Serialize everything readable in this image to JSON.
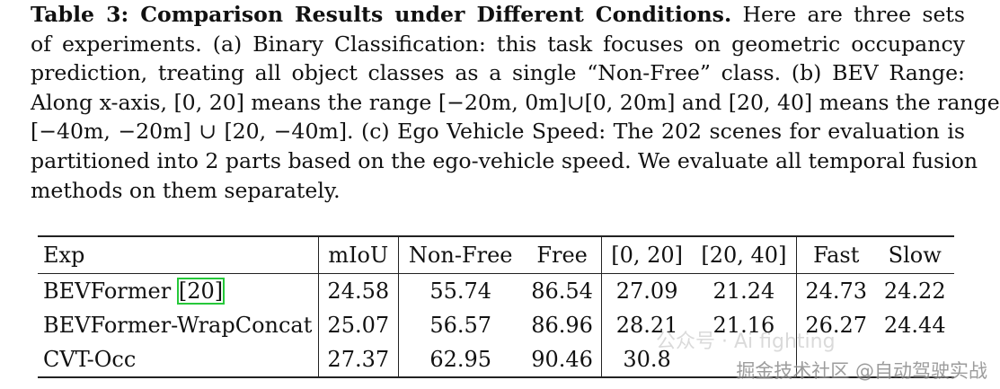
{
  "caption": {
    "lead": "Table 3: Comparison Results under Different Conditions.",
    "lines": [
      "Here are three sets",
      "of experiments. (a) Binary Classification: this task focuses on geometric occupancy",
      "prediction, treating all object classes as a single “Non-Free” class. (b) BEV Range:",
      "Along x-axis, [0, 20] means the range [−20m, 0m]∪[0, 20m] and [20, 40] means the range",
      "[−40m, −20m] ∪ [20, −40m]. (c) Ego Vehicle Speed: The 202 scenes for evaluation is",
      "partitioned into 2 parts based on the ego-vehicle speed. We evaluate all temporal fusion",
      "methods on them separately."
    ]
  },
  "table": {
    "headers": [
      "Exp",
      "mIoU",
      "Non-Free",
      "Free",
      "[0, 20]",
      "[20, 40]",
      "Fast",
      "Slow"
    ],
    "rows": [
      {
        "exp": "BEVFormer",
        "ref": "20",
        "values": [
          "24.58",
          "55.74",
          "86.54",
          "27.09",
          "21.24",
          "24.73",
          "24.22"
        ]
      },
      {
        "exp": "BEVFormer-WrapConcat",
        "ref": "",
        "values": [
          "25.07",
          "56.57",
          "86.96",
          "28.21",
          "21.16",
          "26.27",
          "24.44"
        ]
      },
      {
        "exp": "CVT-Occ",
        "ref": "",
        "values": [
          "27.37",
          "62.95",
          "90.46",
          "30.8",
          "",
          "",
          ""
        ]
      }
    ]
  },
  "watermarks": {
    "top": "公众号 · Ai fighting",
    "bottom": "掘金技术社区 @自动驾驶实战"
  }
}
